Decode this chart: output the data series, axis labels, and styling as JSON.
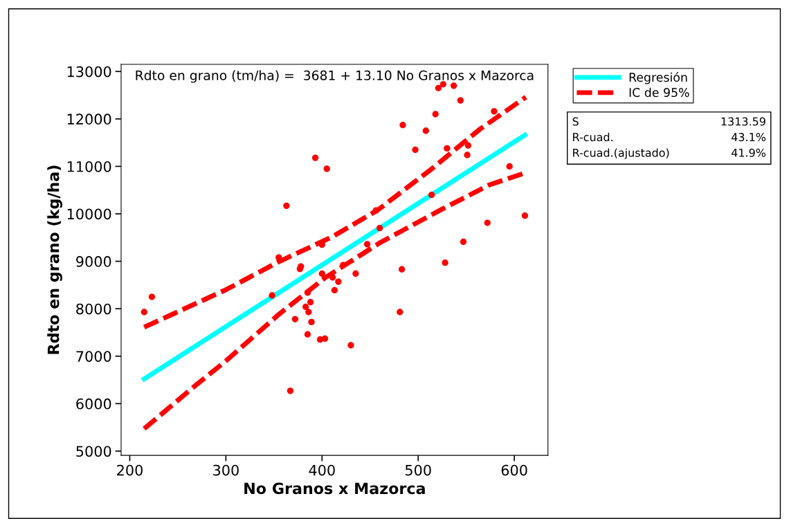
{
  "chart_data": {
    "type": "scatter",
    "xlabel": "No Granos x Mazorca",
    "ylabel": "Rdto en grano (kg/ha)",
    "xlim": [
      191,
      635
    ],
    "ylim": [
      4910,
      13150
    ],
    "xticks": [
      200,
      300,
      400,
      500,
      600
    ],
    "yticks": [
      5000,
      6000,
      7000,
      8000,
      9000,
      10000,
      11000,
      12000,
      13000
    ],
    "grid": false,
    "legend": "right",
    "annotations": [
      "Rdto en grano (tm/ha) =  3681 + 13.10 No Granos x Mazorca",
      "S",
      "1313.59",
      "R-cuad.",
      "43.1%",
      "R-cuad.(ajustado)",
      "41.9%"
    ],
    "series": [
      {
        "color": "#ff0000",
        "marker": "circle",
        "x": [
          215,
          223,
          348,
          355,
          363,
          393,
          405,
          377,
          378,
          400,
          400,
          385,
          388,
          383,
          386,
          389,
          372,
          385,
          398,
          403,
          367,
          413,
          411,
          417,
          422,
          435,
          447,
          460,
          456,
          430,
          481,
          483,
          528,
          547,
          572,
          611,
          521,
          526,
          537,
          544,
          518,
          579,
          484,
          508,
          497,
          530,
          551,
          552,
          595,
          514
        ],
        "values": [
          7930,
          8250,
          8280,
          9080,
          10170,
          11180,
          10950,
          8840,
          8890,
          9350,
          8740,
          8340,
          8140,
          8040,
          7930,
          7720,
          7780,
          7460,
          7350,
          7370,
          6270,
          8390,
          8660,
          8570,
          8920,
          8740,
          9360,
          9700,
          10070,
          7230,
          7930,
          8830,
          8970,
          9410,
          9810,
          9960,
          12650,
          12730,
          12700,
          12390,
          12100,
          12160,
          11870,
          11750,
          11350,
          11380,
          11240,
          11440,
          11000,
          10400
        ]
      },
      {
        "type": "line",
        "name": "Regresión",
        "color": "#00ffff",
        "line_style": "solid",
        "marker": "none",
        "x": [
          215,
          611
        ],
        "values": [
          6520,
          11660
        ]
      },
      {
        "type": "line",
        "name": "IC de 95%",
        "color": "#ff0000",
        "line_style": "dashed",
        "marker": "none",
        "x": [
          215,
          257,
          300,
          355,
          410,
          458,
          513,
          564,
          612
        ],
        "values": [
          7610,
          8000,
          8400,
          8990,
          9510,
          10080,
          10930,
          11780,
          12460
        ]
      },
      {
        "type": "line",
        "color": "#ff0000",
        "line_style": "dashed",
        "marker": "none",
        "x": [
          215,
          267,
          300,
          355,
          403,
          461,
          525,
          574,
          611
        ],
        "values": [
          5470,
          6360,
          6900,
          7880,
          8650,
          9400,
          10100,
          10610,
          10860
        ]
      }
    ]
  }
}
